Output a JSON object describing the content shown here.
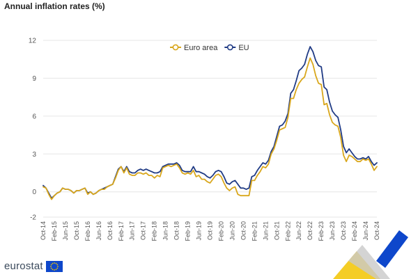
{
  "title": "Annual inflation rates (%)",
  "brand": "eurostat",
  "colors": {
    "euro_area": "#d9a71c",
    "eu": "#203b85",
    "grid": "#e6e6e6",
    "brand_blue": "#0e47cb",
    "brand_yellow": "#f2c400"
  },
  "chart_data": {
    "type": "line",
    "title": "Annual inflation rates (%)",
    "xlabel": "",
    "ylabel": "",
    "ylim": [
      -2,
      12
    ],
    "yticks": [
      -2,
      0,
      3,
      6,
      9,
      12
    ],
    "grid": "horizontal",
    "legend_position": "top-center",
    "x": [
      "Oct-14",
      "Nov-14",
      "Dec-14",
      "Jan-15",
      "Feb-15",
      "Mar-15",
      "Apr-15",
      "May-15",
      "Jun-15",
      "Jul-15",
      "Aug-15",
      "Sep-15",
      "Oct-15",
      "Nov-15",
      "Dec-15",
      "Jan-16",
      "Feb-16",
      "Mar-16",
      "Apr-16",
      "May-16",
      "Jun-16",
      "Jul-16",
      "Aug-16",
      "Sep-16",
      "Oct-16",
      "Nov-16",
      "Dec-16",
      "Jan-17",
      "Feb-17",
      "Mar-17",
      "Apr-17",
      "May-17",
      "Jun-17",
      "Jul-17",
      "Aug-17",
      "Sep-17",
      "Oct-17",
      "Nov-17",
      "Dec-17",
      "Jan-18",
      "Feb-18",
      "Mar-18",
      "Apr-18",
      "May-18",
      "Jun-18",
      "Jul-18",
      "Aug-18",
      "Sep-18",
      "Oct-18",
      "Nov-18",
      "Dec-18",
      "Jan-19",
      "Feb-19",
      "Mar-19",
      "Apr-19",
      "May-19",
      "Jun-19",
      "Jul-19",
      "Aug-19",
      "Sep-19",
      "Oct-19",
      "Nov-19",
      "Dec-19",
      "Jan-20",
      "Feb-20",
      "Mar-20",
      "Apr-20",
      "May-20",
      "Jun-20",
      "Jul-20",
      "Aug-20",
      "Sep-20",
      "Oct-20",
      "Nov-20",
      "Dec-20",
      "Jan-21",
      "Feb-21",
      "Mar-21",
      "Apr-21",
      "May-21",
      "Jun-21",
      "Jul-21",
      "Aug-21",
      "Sep-21",
      "Oct-21",
      "Nov-21",
      "Dec-21",
      "Jan-22",
      "Feb-22",
      "Mar-22",
      "Apr-22",
      "May-22",
      "Jun-22",
      "Jul-22",
      "Aug-22",
      "Sep-22",
      "Oct-22",
      "Nov-22",
      "Dec-22",
      "Jan-23",
      "Feb-23",
      "Mar-23",
      "Apr-23",
      "May-23",
      "Jun-23",
      "Jul-23",
      "Aug-23",
      "Sep-23",
      "Oct-23",
      "Nov-23",
      "Dec-23",
      "Jan-24",
      "Feb-24",
      "Mar-24",
      "Apr-24",
      "May-24",
      "Jun-24",
      "Jul-24",
      "Aug-24",
      "Sep-24",
      "Oct-24"
    ],
    "x_tick_labels": [
      "Oct-14",
      "Feb-15",
      "Jun-15",
      "Oct-15",
      "Feb-16",
      "Jun-16",
      "Oct-16",
      "Feb-17",
      "Jun-17",
      "Oct-17",
      "Feb-18",
      "Jun-18",
      "Oct-18",
      "Feb-19",
      "Jun-19",
      "Oct-19",
      "Feb-20",
      "Jun-20",
      "Oct-20",
      "Feb-21",
      "Jun-21",
      "Oct-21",
      "Feb-22",
      "Jun-22",
      "Oct-22",
      "Feb-23",
      "Jun-23",
      "Oct-23",
      "Feb-24",
      "Jun-24",
      "Oct-24"
    ],
    "series": [
      {
        "name": "Euro area",
        "color": "#d9a71c",
        "values": [
          0.4,
          0.3,
          -0.2,
          -0.6,
          -0.3,
          -0.1,
          0.0,
          0.3,
          0.2,
          0.2,
          0.1,
          -0.1,
          0.1,
          0.1,
          0.2,
          0.3,
          -0.2,
          0.0,
          -0.2,
          -0.1,
          0.1,
          0.2,
          0.2,
          0.4,
          0.5,
          0.6,
          1.1,
          1.7,
          2.0,
          1.5,
          1.9,
          1.4,
          1.3,
          1.3,
          1.5,
          1.5,
          1.4,
          1.5,
          1.3,
          1.3,
          1.1,
          1.3,
          1.2,
          1.9,
          2.0,
          2.1,
          2.0,
          2.1,
          2.2,
          1.9,
          1.5,
          1.4,
          1.5,
          1.4,
          1.7,
          1.2,
          1.3,
          1.0,
          1.0,
          0.8,
          0.7,
          1.0,
          1.3,
          1.4,
          1.2,
          0.7,
          0.3,
          0.1,
          0.3,
          0.4,
          -0.2,
          -0.3,
          -0.3,
          -0.3,
          -0.3,
          0.9,
          0.9,
          1.3,
          1.6,
          2.0,
          1.9,
          2.2,
          3.0,
          3.4,
          4.1,
          4.9,
          5.0,
          5.1,
          5.9,
          7.4,
          7.4,
          8.1,
          8.6,
          8.9,
          9.1,
          9.9,
          10.6,
          10.1,
          9.2,
          8.6,
          8.5,
          6.9,
          7.0,
          6.1,
          5.5,
          5.3,
          5.2,
          4.3,
          2.9,
          2.4,
          2.9,
          2.8,
          2.6,
          2.4,
          2.4,
          2.6,
          2.5,
          2.6,
          2.2,
          1.7,
          2.0
        ]
      },
      {
        "name": "EU",
        "color": "#203b85",
        "values": [
          0.5,
          0.3,
          -0.1,
          -0.5,
          -0.3,
          -0.1,
          0.0,
          0.3,
          0.2,
          0.2,
          0.1,
          -0.1,
          0.1,
          0.1,
          0.2,
          0.3,
          -0.1,
          0.0,
          -0.2,
          -0.1,
          0.1,
          0.2,
          0.3,
          0.4,
          0.5,
          0.6,
          1.2,
          1.8,
          2.0,
          1.6,
          2.0,
          1.6,
          1.5,
          1.5,
          1.7,
          1.8,
          1.7,
          1.8,
          1.7,
          1.6,
          1.5,
          1.5,
          1.6,
          2.0,
          2.1,
          2.2,
          2.2,
          2.2,
          2.3,
          2.1,
          1.7,
          1.6,
          1.6,
          1.6,
          2.0,
          1.6,
          1.6,
          1.5,
          1.4,
          1.2,
          1.1,
          1.3,
          1.6,
          1.7,
          1.6,
          1.2,
          0.7,
          0.6,
          0.8,
          0.9,
          0.6,
          0.3,
          0.3,
          0.2,
          0.3,
          1.2,
          1.3,
          1.7,
          2.0,
          2.3,
          2.2,
          2.5,
          3.2,
          3.6,
          4.4,
          5.2,
          5.3,
          5.6,
          6.2,
          7.8,
          8.1,
          8.8,
          9.6,
          9.8,
          10.1,
          10.9,
          11.5,
          11.1,
          10.4,
          10.0,
          9.9,
          8.3,
          8.1,
          7.1,
          6.4,
          6.1,
          5.9,
          4.9,
          3.6,
          3.1,
          3.4,
          3.1,
          2.8,
          2.6,
          2.6,
          2.7,
          2.6,
          2.8,
          2.4,
          2.1,
          2.3
        ]
      }
    ]
  }
}
